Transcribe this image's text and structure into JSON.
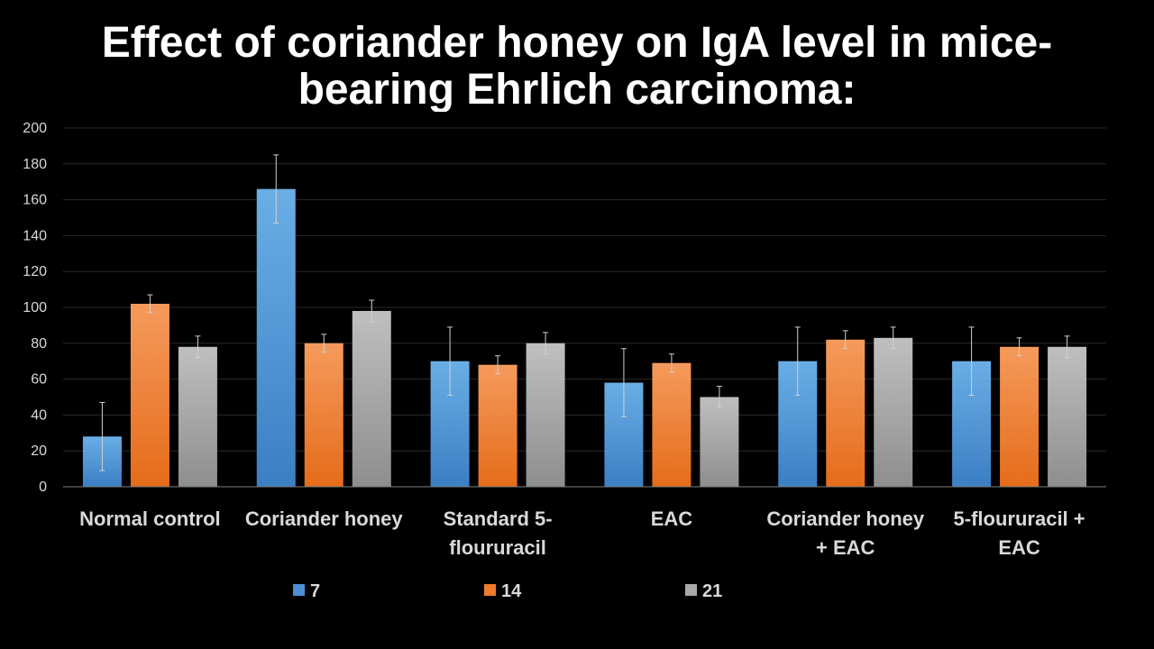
{
  "title": {
    "line1": "Effect of coriander honey on IgA level in mice-",
    "line2": "bearing Ehrlich carcinoma:"
  },
  "chart_data": {
    "type": "bar",
    "categories": [
      [
        "Normal control"
      ],
      [
        "Coriander honey"
      ],
      [
        "Standard 5-",
        "floururacil"
      ],
      [
        "EAC"
      ],
      [
        "Coriander honey",
        "+ EAC"
      ],
      [
        "5-floururacil +",
        "EAC"
      ]
    ],
    "series": [
      {
        "name": "7",
        "color": "#4a8fd4",
        "values": [
          28,
          166,
          70,
          58,
          70,
          70
        ],
        "errors": [
          19,
          19,
          19,
          19,
          19,
          19
        ]
      },
      {
        "name": "14",
        "color": "#ee7a2a",
        "values": [
          102,
          80,
          68,
          69,
          82,
          78
        ],
        "errors": [
          5,
          5,
          5,
          5,
          5,
          5
        ]
      },
      {
        "name": "21",
        "color": "#a9a9a9",
        "values": [
          78,
          98,
          80,
          50,
          83,
          78
        ],
        "errors": [
          6,
          6,
          6,
          6,
          6,
          6
        ]
      }
    ],
    "yticks": [
      0,
      20,
      40,
      60,
      80,
      100,
      120,
      140,
      160,
      180,
      200
    ],
    "ylim": [
      0,
      200
    ],
    "grid": true,
    "legend_position": "bottom"
  }
}
